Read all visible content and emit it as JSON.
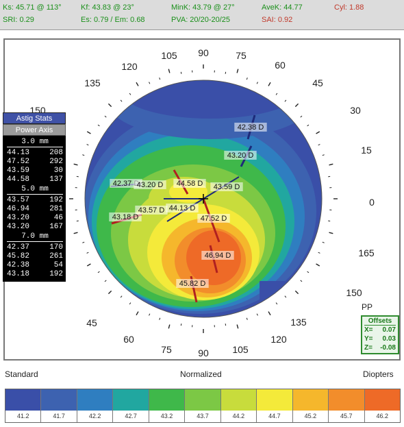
{
  "header": {
    "ks": "Ks: 45.71 @ 113°",
    "kf": "Kf: 43.83 @ 23°",
    "mink": "MinK: 43.79 @ 27°",
    "avek": "AveK: 44.77",
    "cyl": "Cyl: 1.88",
    "sri": "SRI: 0.29",
    "es": "Es: 0.79 / Em: 0.68",
    "pva": "PVA: 20/20-20/25",
    "sai": "SAI: 0.92",
    "colors": {
      "green": "#1a8f1a",
      "red": "#c0392b",
      "bg": "#dcdcdc"
    }
  },
  "stats": {
    "astig_label": "Astig Stats",
    "power_axis_label": "Power  Axis",
    "zones": [
      {
        "title": "3.0 mm",
        "rows": [
          [
            "44.13",
            "208"
          ],
          [
            "47.52",
            "292"
          ],
          [
            "43.59",
            "30"
          ],
          [
            "44.58",
            "137"
          ]
        ]
      },
      {
        "title": "5.0 mm",
        "rows": [
          [
            "43.57",
            "192"
          ],
          [
            "46.94",
            "281"
          ],
          [
            "43.20",
            "46"
          ],
          [
            "43.20",
            "167"
          ]
        ]
      },
      {
        "title": "7.0 mm",
        "rows": [
          [
            "42.37",
            "170"
          ],
          [
            "45.82",
            "261"
          ],
          [
            "42.38",
            "54"
          ],
          [
            "43.18",
            "192"
          ]
        ]
      }
    ]
  },
  "map": {
    "axis_labels": [
      "105",
      "90",
      "75",
      "120",
      "60",
      "135",
      "45",
      "150",
      "30",
      "15",
      "0",
      "165",
      "150",
      "135",
      "45",
      "60",
      "120",
      "75",
      "90",
      "105"
    ],
    "marker_labels": [
      "42.38 D",
      "43.20 D",
      "42.37 D",
      "43.20 D",
      "44.58 D",
      "43.59 D",
      "44.13 D",
      "43.57 D",
      "43.18 D",
      "47.52 D",
      "46.94 D",
      "45.82 D"
    ]
  },
  "offsets": {
    "pp": "PP",
    "title": "Offsets",
    "x_label": "X=",
    "x": "0.07",
    "y_label": "Y=",
    "y": "0.03",
    "z_label": "Z=",
    "z": "-0.08"
  },
  "bottom": {
    "left": "Standard",
    "center": "Normalized",
    "right": "Diopters"
  },
  "scale": {
    "values": [
      "41.2",
      "41.7",
      "42.2",
      "42.7",
      "43.2",
      "43.7",
      "44.2",
      "44.7",
      "45.2",
      "45.7",
      "46.2"
    ],
    "colors": [
      "#3a4fa8",
      "#3d62b0",
      "#2f7ec0",
      "#21a7a0",
      "#3fb84a",
      "#7cc845",
      "#c8dc3c",
      "#f4ea3a",
      "#f5b72c",
      "#f28d2b",
      "#ee6a27"
    ]
  }
}
